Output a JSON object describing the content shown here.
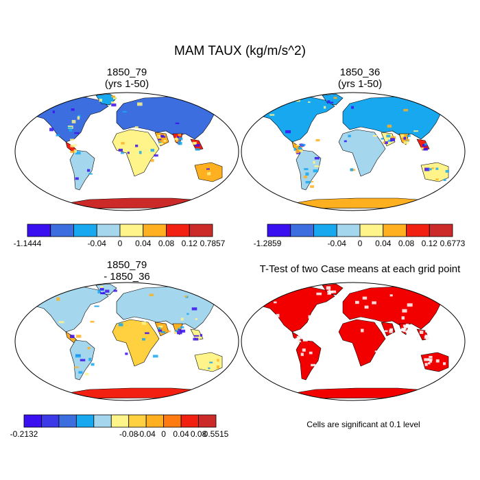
{
  "figure": {
    "title": "MAM TAUX (kg/m/s^2)",
    "note": "Cells are significant at 0.1 level"
  },
  "panels": [
    {
      "title_line1": "1850_79",
      "title_line2": "(yrs 1-50)"
    },
    {
      "title_line1": "1850_36",
      "title_line2": "(yrs 1-50)"
    },
    {
      "title_line1": "1850_79",
      "title_line2": "- 1850_36"
    },
    {
      "title_line1": "T-Test of two Case means at each grid point",
      "title_line2": ""
    }
  ],
  "colorbars": [
    {
      "colors": [
        "#3a10f0",
        "#3d6ee0",
        "#18a8f0",
        "#a4d6ee",
        "#fff489",
        "#ffb020",
        "#f22010",
        "#cc2a28"
      ],
      "labels": [
        "-1.1444",
        "-0.04",
        "0",
        "0.04",
        "0.08",
        "0.12",
        "0.7857"
      ]
    },
    {
      "colors": [
        "#3a10f0",
        "#3d6ee0",
        "#18a8f0",
        "#a4d6ee",
        "#fff489",
        "#ffb020",
        "#f22010",
        "#cc2a28"
      ],
      "labels": [
        "-1.2859",
        "-0.04",
        "0",
        "0.04",
        "0.08",
        "0.12",
        "0.6773"
      ]
    },
    {
      "colors": [
        "#3a10f0",
        "#3c3ae8",
        "#3d6ee0",
        "#18a8f0",
        "#a4d6ee",
        "#fff489",
        "#ffd040",
        "#ffb020",
        "#ff7a10",
        "#f22010",
        "#cc2a28"
      ],
      "labels": [
        "-0.2132",
        "-0.08",
        "-0.04",
        "0",
        "0.04",
        "0.08",
        "0.5515"
      ]
    }
  ],
  "colors": {
    "significance": "#f20000",
    "outline": "#000000"
  }
}
